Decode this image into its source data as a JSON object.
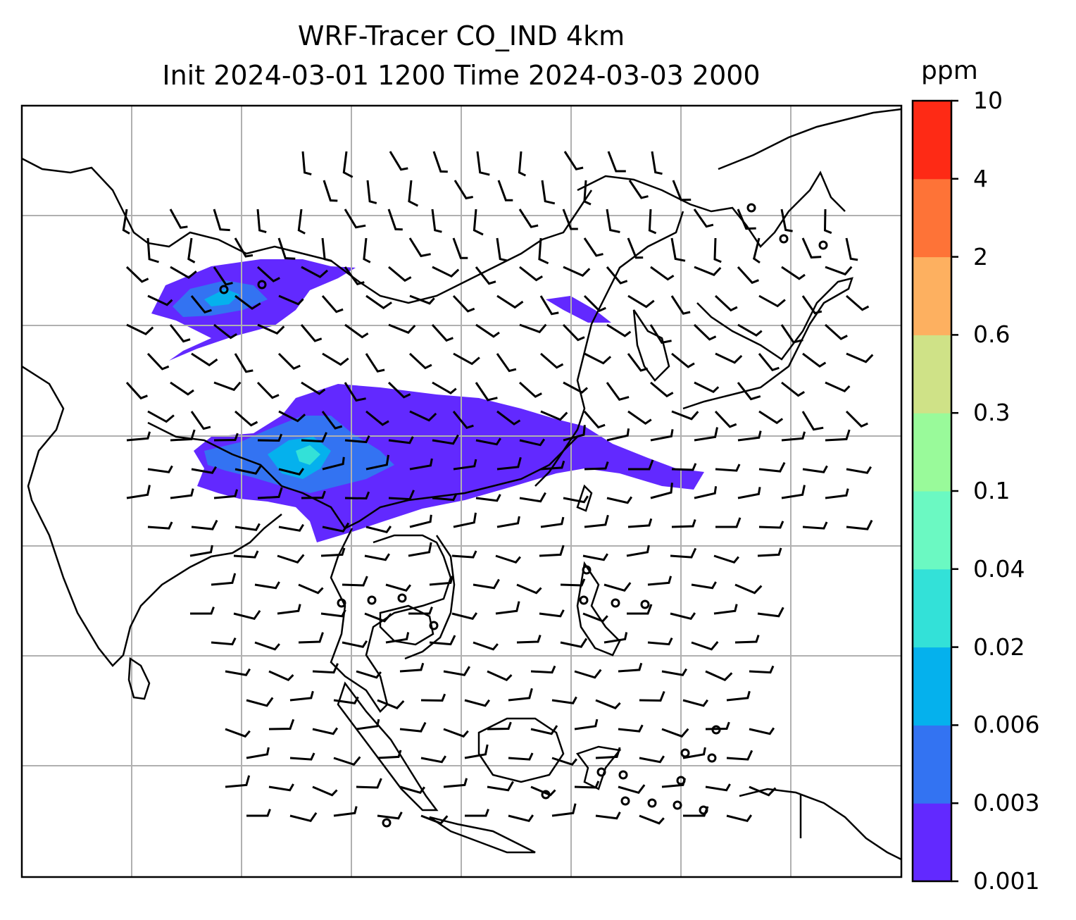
{
  "title_line1": "WRF-Tracer CO_IND 4km",
  "title_line2": "Init 2024-03-01 1200 Time 2024-03-03 2000",
  "colorbar": {
    "unit": "ppm",
    "ticks": [
      "0.001",
      "0.003",
      "0.006",
      "0.02",
      "0.04",
      "0.1",
      "0.3",
      "0.6",
      "2",
      "4",
      "10"
    ],
    "colors": [
      "#6229ff",
      "#3373f2",
      "#05b1ed",
      "#33e1d8",
      "#6bf9c2",
      "#99fa9a",
      "#cfe287",
      "#fdb060",
      "#fe7337",
      "#fe2a15"
    ]
  },
  "map": {
    "gridlines": true,
    "field": "CO tracer concentration with wind barbs"
  }
}
